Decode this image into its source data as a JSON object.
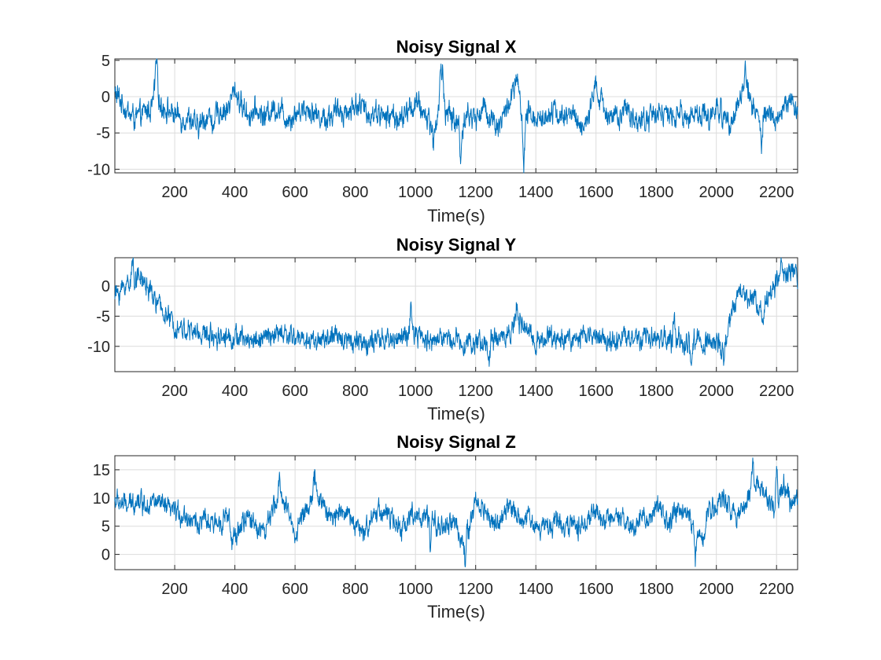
{
  "colors": {
    "line": "#0072BD",
    "axis": "#262626",
    "grid": "#dcdcdc"
  },
  "chart_data": [
    {
      "type": "line",
      "title": "Noisy Signal X",
      "xlabel": "Time(s)",
      "ylabel": "",
      "grid": true,
      "xlim": [
        1,
        2270
      ],
      "ylim": [
        -10.5,
        5.2
      ],
      "xticks": [
        200,
        400,
        600,
        800,
        1000,
        1200,
        1400,
        1600,
        1800,
        2000,
        2200
      ],
      "xtick_labels": [
        "200",
        "400",
        "600",
        "800",
        "1000",
        "1200",
        "1400",
        "1600",
        "1800",
        "2000",
        "2200"
      ],
      "yticks": [
        -10,
        -5,
        0,
        5
      ],
      "ytick_labels": [
        "-10",
        "-5",
        "0",
        "5"
      ],
      "series": [
        {
          "x": [
            1,
            25,
            50,
            75,
            100,
            125,
            140,
            150,
            175,
            200,
            225,
            250,
            275,
            300,
            325,
            350,
            375,
            400,
            425,
            450,
            475,
            500,
            525,
            550,
            575,
            600,
            625,
            650,
            675,
            700,
            725,
            750,
            775,
            800,
            825,
            850,
            875,
            900,
            925,
            950,
            975,
            1000,
            1025,
            1050,
            1065,
            1080,
            1090,
            1100,
            1125,
            1150,
            1175,
            1200,
            1225,
            1250,
            1275,
            1300,
            1325,
            1340,
            1355,
            1375,
            1400,
            1425,
            1450,
            1475,
            1500,
            1525,
            1550,
            1575,
            1600,
            1625,
            1650,
            1675,
            1700,
            1725,
            1750,
            1775,
            1800,
            1825,
            1850,
            1875,
            1900,
            1925,
            1950,
            1975,
            2000,
            2025,
            2050,
            2075,
            2100,
            2125,
            2150,
            2175,
            2200,
            2225,
            2250,
            2270
          ],
          "y": [
            0.5,
            -0.8,
            -2.5,
            -3.0,
            -2.2,
            -1.5,
            3.5,
            -1.0,
            -1.8,
            -2.5,
            -3.0,
            -2.8,
            -4.5,
            -3.0,
            -2.5,
            -2.0,
            -1.8,
            1.0,
            -1.5,
            -2.5,
            -2.0,
            -2.8,
            -1.5,
            -1.8,
            -3.0,
            -2.5,
            -1.5,
            -1.8,
            -2.6,
            -3.0,
            -2.5,
            -1.8,
            -2.2,
            -1.0,
            -1.5,
            -2.5,
            -2.0,
            -3.0,
            -2.5,
            -3.5,
            -1.8,
            -1.0,
            -2.0,
            -3.5,
            -4.5,
            -0.5,
            3.0,
            -2.0,
            -3.0,
            -4.0,
            -2.5,
            -3.0,
            -1.5,
            -2.8,
            -4.0,
            -2.0,
            0.5,
            2.5,
            -4.5,
            -2.5,
            -2.8,
            -3.2,
            -1.5,
            -2.5,
            -3.0,
            -2.0,
            -4.5,
            -2.8,
            0.5,
            -1.5,
            -2.5,
            -3.2,
            -2.0,
            -2.8,
            -3.5,
            -3.0,
            -1.8,
            -2.5,
            -3.0,
            -2.2,
            -3.2,
            -2.0,
            -2.5,
            -3.0,
            -1.5,
            -2.8,
            -3.0,
            -1.0,
            2.0,
            -1.8,
            -3.0,
            -2.5,
            -3.2,
            -1.5,
            -0.5,
            -2.0
          ],
          "amp": 1.3,
          "spikes": [
            [
              140,
              5.0
            ],
            [
              1085,
              4.5
            ],
            [
              1150,
              -9.8
            ],
            [
              1360,
              -10.4
            ],
            [
              1600,
              3.2
            ],
            [
              2095,
              4.0
            ],
            [
              2150,
              -7.5
            ],
            [
              1060,
              -6.8
            ],
            [
              330,
              -6.3
            ]
          ]
        }
      ]
    },
    {
      "type": "line",
      "title": "Noisy Signal Y",
      "xlabel": "Time(s)",
      "ylabel": "",
      "grid": true,
      "xlim": [
        1,
        2270
      ],
      "ylim": [
        -14.2,
        4.7
      ],
      "xticks": [
        200,
        400,
        600,
        800,
        1000,
        1200,
        1400,
        1600,
        1800,
        2000,
        2200
      ],
      "xtick_labels": [
        "200",
        "400",
        "600",
        "800",
        "1000",
        "1200",
        "1400",
        "1600",
        "1800",
        "2000",
        "2200"
      ],
      "yticks": [
        -10,
        -5,
        0
      ],
      "ytick_labels": [
        "-10",
        "-5",
        "0"
      ],
      "series": [
        {
          "x": [
            1,
            25,
            50,
            75,
            100,
            125,
            150,
            175,
            200,
            225,
            250,
            275,
            300,
            350,
            400,
            450,
            500,
            550,
            600,
            650,
            700,
            750,
            800,
            850,
            900,
            950,
            1000,
            1050,
            1100,
            1150,
            1200,
            1250,
            1300,
            1340,
            1400,
            1450,
            1500,
            1550,
            1600,
            1650,
            1700,
            1750,
            1800,
            1850,
            1900,
            1950,
            2000,
            2025,
            2050,
            2075,
            2100,
            2125,
            2150,
            2175,
            2200,
            2225,
            2250,
            2270
          ],
          "y": [
            -1.5,
            -0.5,
            1.0,
            1.8,
            0.5,
            -1.5,
            -3.5,
            -5.0,
            -6.5,
            -7.0,
            -7.5,
            -7.8,
            -8.0,
            -8.2,
            -8.5,
            -9.0,
            -8.5,
            -8.0,
            -8.5,
            -9.0,
            -8.8,
            -8.5,
            -9.0,
            -9.5,
            -9.0,
            -8.5,
            -8.0,
            -9.0,
            -8.5,
            -9.0,
            -9.5,
            -9.2,
            -8.0,
            -6.0,
            -9.0,
            -8.5,
            -8.8,
            -8.5,
            -8.2,
            -9.0,
            -8.5,
            -9.0,
            -8.5,
            -9.0,
            -9.5,
            -9.0,
            -9.5,
            -11.0,
            -5.0,
            -1.0,
            -1.5,
            -2.0,
            -3.5,
            -2.0,
            0.5,
            1.5,
            2.5,
            1.5
          ],
          "amp": 1.4,
          "spikes": [
            [
              60,
              3.8
            ],
            [
              2215,
              4.3
            ],
            [
              1245,
              -14.0
            ],
            [
              1915,
              -14.0
            ],
            [
              2025,
              -12.8
            ],
            [
              1335,
              -3.3
            ],
            [
              985,
              -3.8
            ],
            [
              1860,
              -4.0
            ],
            [
              2155,
              -5.8
            ]
          ]
        }
      ]
    },
    {
      "type": "line",
      "title": "Noisy Signal Z",
      "xlabel": "Time(s)",
      "ylabel": "",
      "grid": true,
      "xlim": [
        1,
        2270
      ],
      "ylim": [
        -2.7,
        17.5
      ],
      "xticks": [
        200,
        400,
        600,
        800,
        1000,
        1200,
        1400,
        1600,
        1800,
        2000,
        2200
      ],
      "xtick_labels": [
        "200",
        "400",
        "600",
        "800",
        "1000",
        "1200",
        "1400",
        "1600",
        "1800",
        "2000",
        "2200"
      ],
      "yticks": [
        0,
        5,
        10,
        15
      ],
      "ytick_labels": [
        "0",
        "5",
        "10",
        "15"
      ],
      "series": [
        {
          "x": [
            1,
            25,
            50,
            75,
            100,
            125,
            150,
            175,
            200,
            225,
            250,
            275,
            300,
            325,
            350,
            375,
            400,
            425,
            450,
            475,
            500,
            525,
            550,
            575,
            600,
            625,
            650,
            675,
            700,
            725,
            750,
            775,
            800,
            825,
            850,
            875,
            900,
            925,
            950,
            975,
            1000,
            1025,
            1050,
            1075,
            1100,
            1125,
            1150,
            1175,
            1200,
            1225,
            1250,
            1275,
            1300,
            1325,
            1350,
            1375,
            1400,
            1425,
            1450,
            1475,
            1500,
            1525,
            1550,
            1575,
            1600,
            1625,
            1650,
            1675,
            1700,
            1725,
            1750,
            1775,
            1800,
            1825,
            1850,
            1875,
            1900,
            1925,
            1950,
            1975,
            2000,
            2025,
            2050,
            2075,
            2100,
            2125,
            2150,
            2175,
            2200,
            2225,
            2250,
            2270
          ],
          "y": [
            9.5,
            9.0,
            8.5,
            10.0,
            9.0,
            9.5,
            8.8,
            8.0,
            7.5,
            7.0,
            6.5,
            5.5,
            6.0,
            5.0,
            6.0,
            7.0,
            3.0,
            5.5,
            6.5,
            5.0,
            4.0,
            7.5,
            11.0,
            8.0,
            3.5,
            7.0,
            9.5,
            11.0,
            8.0,
            6.0,
            8.5,
            7.0,
            5.5,
            3.0,
            6.5,
            8.0,
            7.5,
            6.0,
            4.0,
            6.5,
            7.5,
            6.0,
            6.5,
            5.0,
            4.5,
            6.0,
            3.0,
            4.0,
            9.5,
            8.0,
            6.5,
            5.0,
            7.5,
            8.5,
            6.0,
            7.0,
            4.5,
            5.5,
            5.0,
            6.5,
            4.5,
            5.5,
            5.0,
            6.0,
            7.5,
            6.0,
            5.5,
            6.5,
            5.0,
            4.5,
            7.0,
            5.5,
            8.5,
            6.5,
            5.5,
            8.0,
            7.5,
            5.0,
            2.0,
            8.0,
            8.5,
            10.0,
            8.5,
            7.0,
            9.0,
            14.0,
            11.0,
            9.5,
            8.0,
            12.0,
            9.0,
            10.0
          ],
          "amp": 1.5,
          "spikes": [
            [
              550,
              13.8
            ],
            [
              665,
              13.7
            ],
            [
              2120,
              17.0
            ],
            [
              2200,
              17.3
            ],
            [
              1165,
              -2.5
            ],
            [
              1930,
              -1.2
            ],
            [
              390,
              -0.5
            ],
            [
              1050,
              -0.5
            ]
          ]
        }
      ]
    }
  ]
}
